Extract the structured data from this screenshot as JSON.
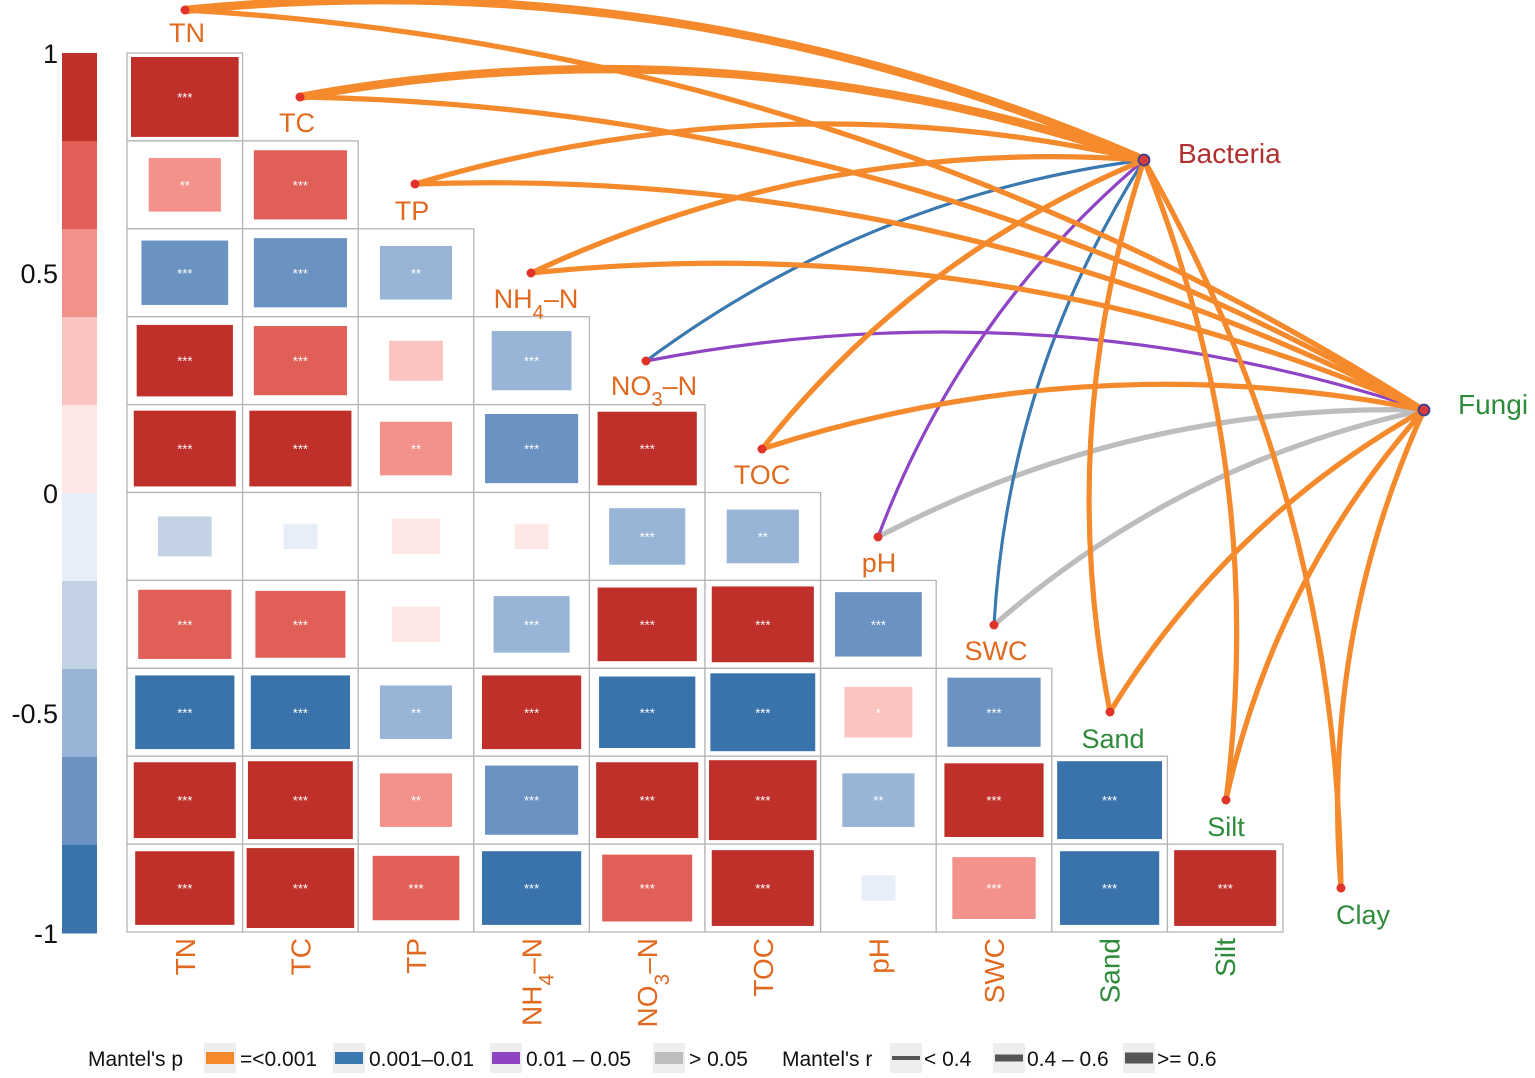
{
  "chart_data": {
    "type": "heatmap",
    "title": "",
    "variables": [
      "TN",
      "TC",
      "TP",
      "NH4-N",
      "NO3-N",
      "TOC",
      "pH",
      "SWC",
      "Sand",
      "Silt",
      "Clay"
    ],
    "axis_variables": [
      "TN",
      "TC",
      "TP",
      "NH4-N",
      "NO3-N",
      "TOC",
      "pH",
      "SWC",
      "Sand",
      "Silt"
    ],
    "colorbar": {
      "range": [
        -1,
        1
      ],
      "ticks": [
        "1",
        "0.5",
        "0",
        "-0.5",
        "-1"
      ],
      "colors_high_to_low": [
        "#c0302a",
        "#e06058",
        "#f3928b",
        "#fbc4c0",
        "#fde8e6",
        "#e8eef7",
        "#c4d2e6",
        "#98b4d6",
        "#6b93c2",
        "#3a72ab"
      ]
    },
    "correlations": [
      {
        "row": "TN",
        "col": "TN",
        "r": 1.0,
        "sig": "***"
      },
      {
        "row": "TC",
        "col": "TN",
        "r": 0.45,
        "sig": "**"
      },
      {
        "row": "TC",
        "col": "TC",
        "r": 0.75,
        "sig": "***"
      },
      {
        "row": "TP",
        "col": "TN",
        "r": -0.65,
        "sig": "***"
      },
      {
        "row": "TP",
        "col": "TC",
        "r": -0.75,
        "sig": "***"
      },
      {
        "row": "TP",
        "col": "TP",
        "r": -0.45,
        "sig": "**"
      },
      {
        "row": "NH4-N",
        "col": "TN",
        "r": 0.8,
        "sig": "***"
      },
      {
        "row": "NH4-N",
        "col": "TC",
        "r": 0.75,
        "sig": "***"
      },
      {
        "row": "NH4-N",
        "col": "TP",
        "r": 0.25,
        "sig": ""
      },
      {
        "row": "NH4-N",
        "col": "NH4-N",
        "r": -0.55,
        "sig": "***"
      },
      {
        "row": "NO3-N",
        "col": "TN",
        "r": 0.9,
        "sig": "***"
      },
      {
        "row": "NO3-N",
        "col": "TC",
        "r": 0.9,
        "sig": "***"
      },
      {
        "row": "NO3-N",
        "col": "TP",
        "r": 0.45,
        "sig": "**"
      },
      {
        "row": "NO3-N",
        "col": "NH4-N",
        "r": -0.75,
        "sig": "***"
      },
      {
        "row": "NO3-N",
        "col": "NO3-N",
        "r": 0.85,
        "sig": "***"
      },
      {
        "row": "TOC",
        "col": "TN",
        "r": -0.25,
        "sig": ""
      },
      {
        "row": "TOC",
        "col": "TC",
        "r": -0.1,
        "sig": ""
      },
      {
        "row": "TOC",
        "col": "TP",
        "r": 0.2,
        "sig": ""
      },
      {
        "row": "TOC",
        "col": "NH4-N",
        "r": 0.1,
        "sig": ""
      },
      {
        "row": "TOC",
        "col": "NO3-N",
        "r": -0.5,
        "sig": "***"
      },
      {
        "row": "TOC",
        "col": "TOC",
        "r": -0.45,
        "sig": "**"
      },
      {
        "row": "pH",
        "col": "TN",
        "r": 0.75,
        "sig": "***"
      },
      {
        "row": "pH",
        "col": "TC",
        "r": 0.7,
        "sig": "***"
      },
      {
        "row": "pH",
        "col": "TP",
        "r": 0.2,
        "sig": ""
      },
      {
        "row": "pH",
        "col": "NH4-N",
        "r": -0.5,
        "sig": "***"
      },
      {
        "row": "pH",
        "col": "NO3-N",
        "r": 0.85,
        "sig": "***"
      },
      {
        "row": "pH",
        "col": "TOC",
        "r": 0.9,
        "sig": "***"
      },
      {
        "row": "pH",
        "col": "pH",
        "r": -0.65,
        "sig": "***"
      },
      {
        "row": "SWC",
        "col": "TN",
        "r": -0.85,
        "sig": "***"
      },
      {
        "row": "SWC",
        "col": "TC",
        "r": -0.85,
        "sig": "***"
      },
      {
        "row": "SWC",
        "col": "TP",
        "r": -0.45,
        "sig": "**"
      },
      {
        "row": "SWC",
        "col": "NH4-N",
        "r": 0.85,
        "sig": "***"
      },
      {
        "row": "SWC",
        "col": "NO3-N",
        "r": -0.8,
        "sig": "***"
      },
      {
        "row": "SWC",
        "col": "TOC",
        "r": -0.95,
        "sig": "***"
      },
      {
        "row": "SWC",
        "col": "pH",
        "r": 0.4,
        "sig": "*"
      },
      {
        "row": "SWC",
        "col": "SWC",
        "r": -0.75,
        "sig": "***"
      },
      {
        "row": "Sand",
        "col": "TN",
        "r": 0.9,
        "sig": "***"
      },
      {
        "row": "Sand",
        "col": "TC",
        "r": 0.95,
        "sig": "***"
      },
      {
        "row": "Sand",
        "col": "TP",
        "r": 0.45,
        "sig": "**"
      },
      {
        "row": "Sand",
        "col": "NH4-N",
        "r": -0.75,
        "sig": "***"
      },
      {
        "row": "Sand",
        "col": "NO3-N",
        "r": 0.9,
        "sig": "***"
      },
      {
        "row": "Sand",
        "col": "TOC",
        "r": 1.0,
        "sig": "***"
      },
      {
        "row": "Sand",
        "col": "pH",
        "r": -0.45,
        "sig": "**"
      },
      {
        "row": "Sand",
        "col": "SWC",
        "r": 0.85,
        "sig": "***"
      },
      {
        "row": "Sand",
        "col": "Sand",
        "r": -0.95,
        "sig": "***"
      },
      {
        "row": "Silt",
        "col": "TN",
        "r": 0.85,
        "sig": "***"
      },
      {
        "row": "Silt",
        "col": "TC",
        "r": 1.0,
        "sig": "***"
      },
      {
        "row": "Silt",
        "col": "TP",
        "r": 0.65,
        "sig": "***"
      },
      {
        "row": "Silt",
        "col": "NH4-N",
        "r": -0.85,
        "sig": "***"
      },
      {
        "row": "Silt",
        "col": "NO3-N",
        "r": 0.7,
        "sig": "***"
      },
      {
        "row": "Silt",
        "col": "TOC",
        "r": 0.9,
        "sig": "***"
      },
      {
        "row": "Silt",
        "col": "pH",
        "r": -0.1,
        "sig": ""
      },
      {
        "row": "Silt",
        "col": "SWC",
        "r": 0.6,
        "sig": "***"
      },
      {
        "row": "Silt",
        "col": "Sand",
        "r": -0.85,
        "sig": "***"
      },
      {
        "row": "Silt",
        "col": "Silt",
        "r": 0.9,
        "sig": "***"
      }
    ],
    "mantel_nodes": {
      "env": [
        {
          "label": "TN",
          "color": "#e06a1f"
        },
        {
          "label": "TC",
          "color": "#e06a1f"
        },
        {
          "label": "TP",
          "color": "#e06a1f"
        },
        {
          "label": "NH4-N",
          "color": "#e06a1f"
        },
        {
          "label": "NO3-N",
          "color": "#e06a1f"
        },
        {
          "label": "TOC",
          "color": "#e06a1f"
        },
        {
          "label": "pH",
          "color": "#e06a1f"
        },
        {
          "label": "SWC",
          "color": "#e06a1f"
        },
        {
          "label": "Sand",
          "color": "#2e8b3a"
        },
        {
          "label": "Silt",
          "color": "#2e8b3a"
        },
        {
          "label": "Clay",
          "color": "#2e8b3a"
        }
      ],
      "groups": [
        {
          "label": "Bacteria",
          "color": "#b03030"
        },
        {
          "label": "Fungi",
          "color": "#2e8b3a"
        }
      ]
    },
    "mantel_tests": [
      {
        "group": "Bacteria",
        "env": "TN",
        "p": "=<0.001",
        "r": ">= 0.6"
      },
      {
        "group": "Bacteria",
        "env": "TC",
        "p": "=<0.001",
        "r": ">= 0.6"
      },
      {
        "group": "Bacteria",
        "env": "TP",
        "p": "=<0.001",
        "r": "0.4 - 0.6"
      },
      {
        "group": "Bacteria",
        "env": "NH4-N",
        "p": "=<0.001",
        "r": "0.4 - 0.6"
      },
      {
        "group": "Bacteria",
        "env": "NO3-N",
        "p": "0.001-0.01",
        "r": "< 0.4"
      },
      {
        "group": "Bacteria",
        "env": "TOC",
        "p": "=<0.001",
        "r": "0.4 - 0.6"
      },
      {
        "group": "Bacteria",
        "env": "pH",
        "p": "0.01 - 0.05",
        "r": "< 0.4"
      },
      {
        "group": "Bacteria",
        "env": "SWC",
        "p": "0.001-0.01",
        "r": "< 0.4"
      },
      {
        "group": "Bacteria",
        "env": "Sand",
        "p": "=<0.001",
        "r": "0.4 - 0.6"
      },
      {
        "group": "Bacteria",
        "env": "Silt",
        "p": "=<0.001",
        "r": "0.4 - 0.6"
      },
      {
        "group": "Bacteria",
        "env": "Clay",
        "p": "=<0.001",
        "r": "0.4 - 0.6"
      },
      {
        "group": "Fungi",
        "env": "TN",
        "p": "=<0.001",
        "r": "0.4 - 0.6"
      },
      {
        "group": "Fungi",
        "env": "TC",
        "p": "=<0.001",
        "r": "0.4 - 0.6"
      },
      {
        "group": "Fungi",
        "env": "TP",
        "p": "=<0.001",
        "r": "0.4 - 0.6"
      },
      {
        "group": "Fungi",
        "env": "NH4-N",
        "p": "=<0.001",
        "r": "0.4 - 0.6"
      },
      {
        "group": "Fungi",
        "env": "NO3-N",
        "p": "0.01 - 0.05",
        "r": "< 0.4"
      },
      {
        "group": "Fungi",
        "env": "TOC",
        "p": "=<0.001",
        "r": "0.4 - 0.6"
      },
      {
        "group": "Fungi",
        "env": "pH",
        "p": "> 0.05",
        "r": "0.4 - 0.6"
      },
      {
        "group": "Fungi",
        "env": "SWC",
        "p": "> 0.05",
        "r": "0.4 - 0.6"
      },
      {
        "group": "Fungi",
        "env": "Sand",
        "p": "=<0.001",
        "r": "0.4 - 0.6"
      },
      {
        "group": "Fungi",
        "env": "Silt",
        "p": "=<0.001",
        "r": "0.4 - 0.6"
      },
      {
        "group": "Fungi",
        "env": "Clay",
        "p": "=<0.001",
        "r": "0.4 - 0.6"
      }
    ],
    "legend": {
      "p_title": "Mantel's p",
      "p_items": [
        {
          "label": "=<0.001",
          "color": "#f58a2c"
        },
        {
          "label": "0.001–0.01",
          "color": "#3a78b0"
        },
        {
          "label": "0.01 – 0.05",
          "color": "#8e44c4"
        },
        {
          "label": "> 0.05",
          "color": "#bdbdbd"
        }
      ],
      "r_title": "Mantel's r",
      "r_items": [
        {
          "label": "< 0.4",
          "weight": 1
        },
        {
          "label": "0.4 – 0.6",
          "weight": 2
        },
        {
          "label": ">= 0.6",
          "weight": 3
        }
      ],
      "placement": "bottom"
    }
  }
}
